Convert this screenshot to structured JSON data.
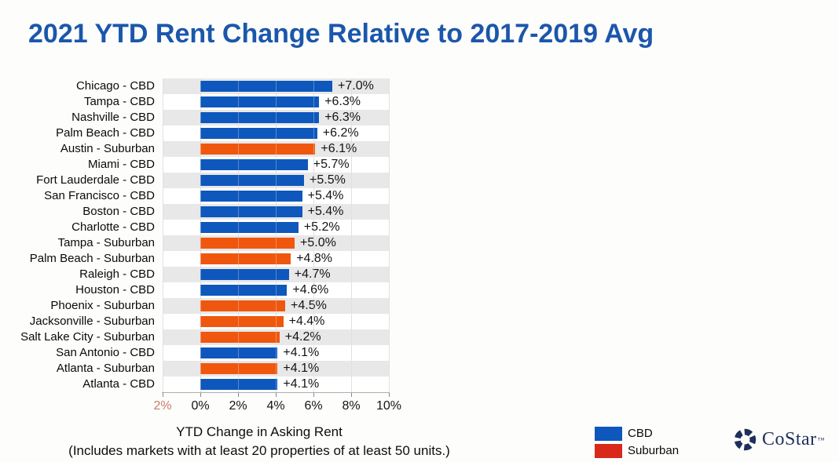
{
  "title": "2021 YTD Rent Change Relative to 2017-2019 Avg",
  "chart_data": {
    "type": "bar",
    "orientation": "horizontal",
    "title": "2021 YTD Rent Change Relative to 2017-2019 Avg",
    "xlabel": "YTD Change in Asking Rent",
    "footnote": "(Includes markets with at least 20 properties of at least 50 units.)",
    "xlim": [
      -2,
      10
    ],
    "grid": true,
    "row_banding": true,
    "rows": [
      {
        "category": "Chicago - CBD",
        "value": 7.0,
        "display": "+7.0%",
        "series": "CBD"
      },
      {
        "category": "Tampa - CBD",
        "value": 6.3,
        "display": "+6.3%",
        "series": "CBD"
      },
      {
        "category": "Nashville - CBD",
        "value": 6.3,
        "display": "+6.3%",
        "series": "CBD"
      },
      {
        "category": "Palm Beach - CBD",
        "value": 6.2,
        "display": "+6.2%",
        "series": "CBD"
      },
      {
        "category": "Austin - Suburban",
        "value": 6.1,
        "display": "+6.1%",
        "series": "Suburban"
      },
      {
        "category": "Miami - CBD",
        "value": 5.7,
        "display": "+5.7%",
        "series": "CBD"
      },
      {
        "category": "Fort Lauderdale - CBD",
        "value": 5.5,
        "display": "+5.5%",
        "series": "CBD"
      },
      {
        "category": "San Francisco - CBD",
        "value": 5.4,
        "display": "+5.4%",
        "series": "CBD"
      },
      {
        "category": "Boston - CBD",
        "value": 5.4,
        "display": "+5.4%",
        "series": "CBD"
      },
      {
        "category": "Charlotte - CBD",
        "value": 5.2,
        "display": "+5.2%",
        "series": "CBD"
      },
      {
        "category": "Tampa - Suburban",
        "value": 5.0,
        "display": "+5.0%",
        "series": "Suburban"
      },
      {
        "category": "Palm Beach - Suburban",
        "value": 4.8,
        "display": "+4.8%",
        "series": "Suburban"
      },
      {
        "category": "Raleigh - CBD",
        "value": 4.7,
        "display": "+4.7%",
        "series": "CBD"
      },
      {
        "category": "Houston - CBD",
        "value": 4.6,
        "display": "+4.6%",
        "series": "CBD"
      },
      {
        "category": "Phoenix - Suburban",
        "value": 4.5,
        "display": "+4.5%",
        "series": "Suburban"
      },
      {
        "category": "Jacksonville - Suburban",
        "value": 4.4,
        "display": "+4.4%",
        "series": "Suburban"
      },
      {
        "category": "Salt Lake City - Suburban",
        "value": 4.2,
        "display": "+4.2%",
        "series": "Suburban"
      },
      {
        "category": "San Antonio - CBD",
        "value": 4.1,
        "display": "+4.1%",
        "series": "CBD"
      },
      {
        "category": "Atlanta - Suburban",
        "value": 4.1,
        "display": "+4.1%",
        "series": "Suburban"
      },
      {
        "category": "Atlanta - CBD",
        "value": 4.1,
        "display": "+4.1%",
        "series": "CBD"
      }
    ],
    "x_ticks": [
      {
        "label": "2%",
        "highlight": true
      },
      {
        "label": "0%"
      },
      {
        "label": "2%"
      },
      {
        "label": "4%"
      },
      {
        "label": "6%"
      },
      {
        "label": "8%"
      },
      {
        "label": "10%"
      }
    ],
    "colors": {
      "CBD": "#0e57bd",
      "Suburban": "#f0570e"
    },
    "legend": [
      {
        "label": "CBD",
        "color": "#0d57bd"
      },
      {
        "label": "Suburban",
        "color": "#d8291a"
      }
    ],
    "legend_position": "bottom-right"
  },
  "footer": {
    "logo_text": "CoStar",
    "logo_tm": "™"
  },
  "theme": {
    "title_color": "#1b57ab",
    "band_color": "#e8e8e8",
    "negative_tick_color": "#c97d6c",
    "logo_color": "#1e2f5c"
  }
}
